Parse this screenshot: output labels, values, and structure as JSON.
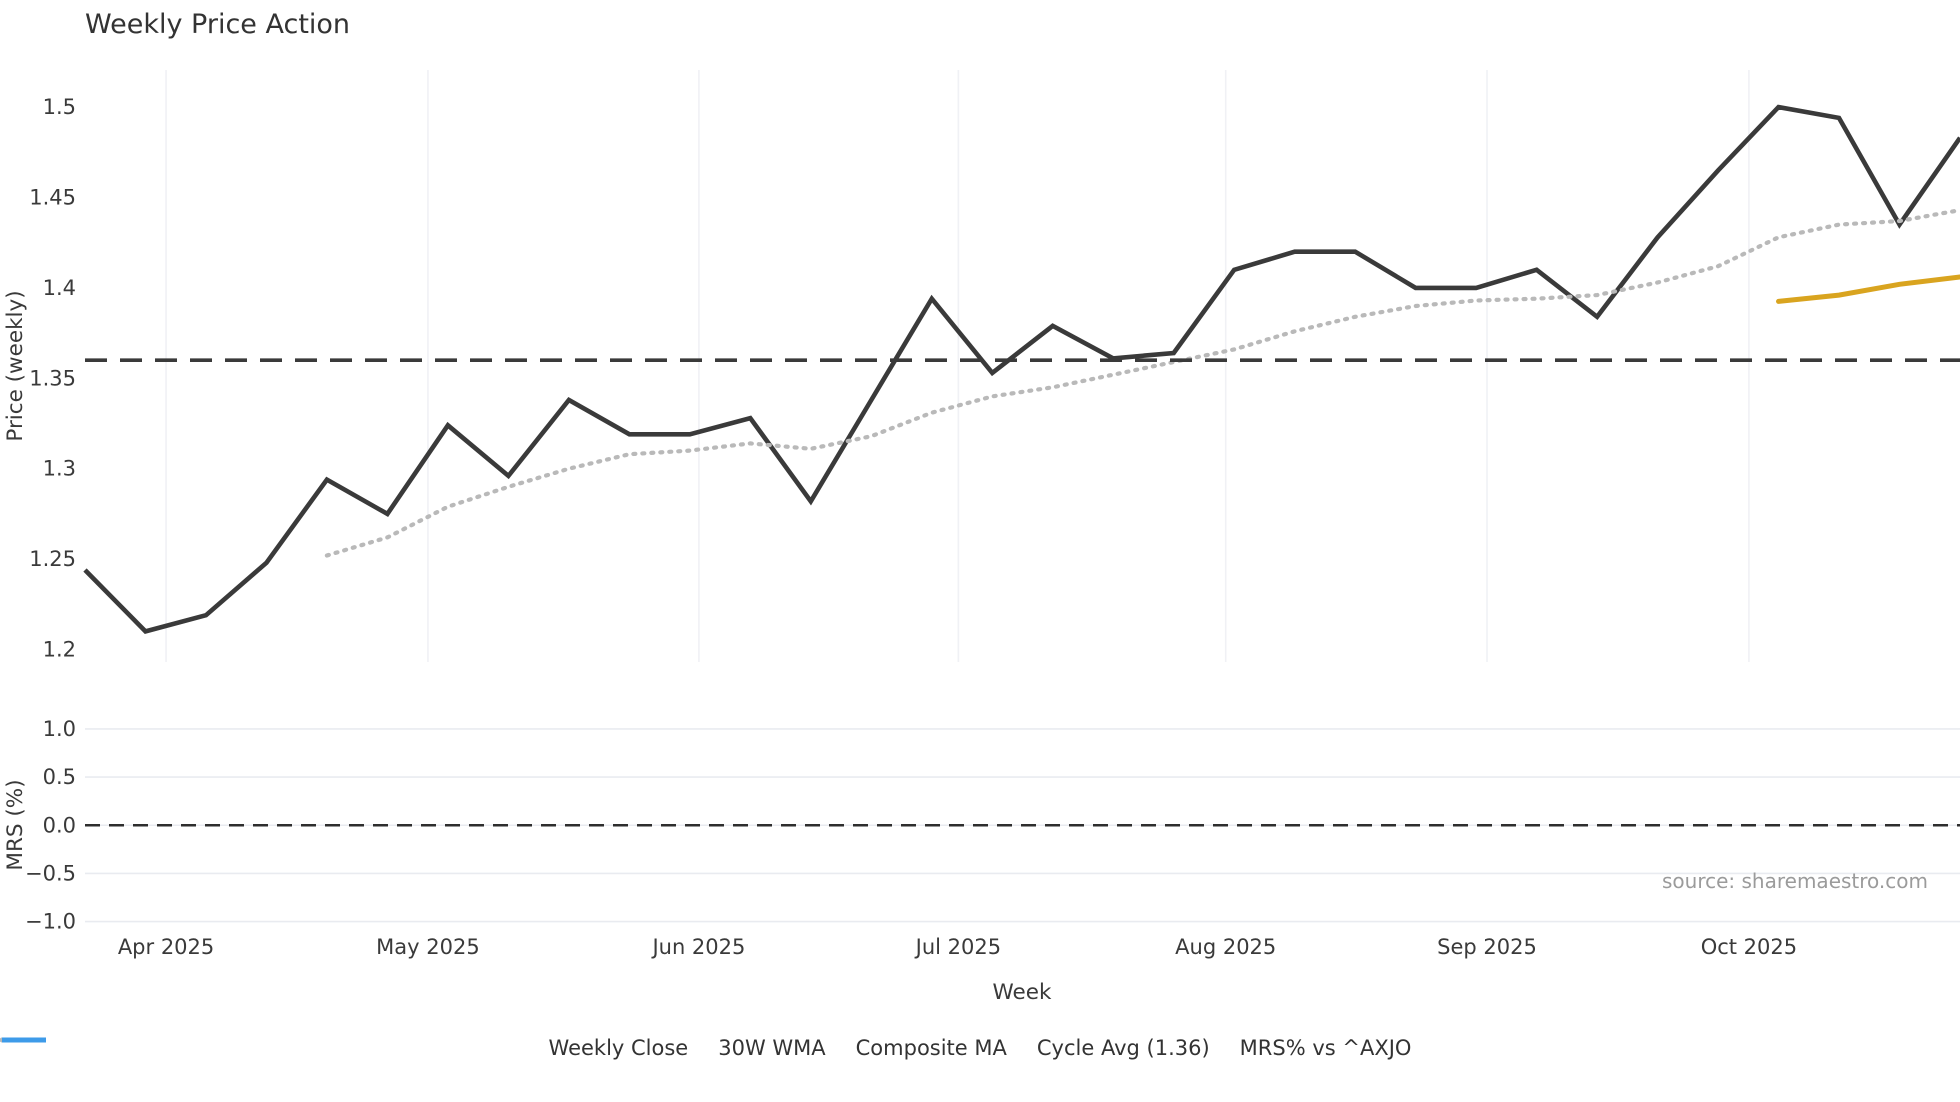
{
  "title": "Weekly Price Action",
  "xlabel": "Week",
  "source_note": "source: sharemaestro.com",
  "price_axis_label": "Price (weekly)",
  "mrs_axis_label": "MRS (%)",
  "legend": {
    "items": [
      {
        "label": "Weekly Close",
        "color": "#3a3a3a",
        "style": "solid"
      },
      {
        "label": "30W WMA",
        "color": "#d9a41f",
        "style": "solid"
      },
      {
        "label": "Composite MA",
        "color": "#b9b9b9",
        "style": "dotted"
      },
      {
        "label": "Cycle Avg (1.36)",
        "color": "#3a3a3a",
        "style": "dashed"
      },
      {
        "label": "MRS% vs ^AXJO",
        "color": "#3d9be9",
        "style": "solid"
      }
    ]
  },
  "chart_data": [
    {
      "panel": "price",
      "type": "line",
      "title": "Weekly Price Action",
      "ylabel": "Price (weekly)",
      "xlabel": "Week",
      "grid": "vertical-month-lines",
      "ylim": [
        1.1931,
        1.5205
      ],
      "xlim": [
        0,
        31
      ],
      "yticks": [
        {
          "v": 1.5,
          "label": "1.5"
        },
        {
          "v": 1.45,
          "label": "1.45"
        },
        {
          "v": 1.4,
          "label": "1.4"
        },
        {
          "v": 1.35,
          "label": "1.35"
        },
        {
          "v": 1.3,
          "label": "1.3"
        },
        {
          "v": 1.25,
          "label": "1.25"
        },
        {
          "v": 1.2,
          "label": "1.2"
        }
      ],
      "month_ticks": [
        {
          "label": "Apr 2025",
          "week": 1.34
        },
        {
          "label": "May 2025",
          "week": 5.67
        },
        {
          "label": "Jun 2025",
          "week": 10.15
        },
        {
          "label": "Jul 2025",
          "week": 14.44
        },
        {
          "label": "Aug 2025",
          "week": 18.86
        },
        {
          "label": "Sep 2025",
          "week": 23.18
        },
        {
          "label": "Oct 2025",
          "week": 27.51
        }
      ],
      "series": [
        {
          "name": "Weekly Close",
          "start_week": 0,
          "values": [
            1.244,
            1.21,
            1.219,
            1.248,
            1.294,
            1.275,
            1.324,
            1.296,
            1.338,
            1.319,
            1.319,
            1.328,
            1.282,
            1.338,
            1.394,
            1.353,
            1.379,
            1.361,
            1.364,
            1.41,
            1.42,
            1.42,
            1.4,
            1.4,
            1.41,
            1.384,
            1.428,
            1.465,
            1.5,
            1.494,
            1.435,
            1.483
          ]
        },
        {
          "name": "Composite MA",
          "start_week": 4,
          "values": [
            1.252,
            1.262,
            1.279,
            1.29,
            1.3,
            1.308,
            1.31,
            1.314,
            1.311,
            1.318,
            1.331,
            1.34,
            1.345,
            1.352,
            1.359,
            1.366,
            1.376,
            1.384,
            1.39,
            1.393,
            1.394,
            1.396,
            1.403,
            1.412,
            1.428,
            1.435,
            1.437,
            1.443
          ]
        },
        {
          "name": "30W WMA",
          "start_week": 28,
          "values": [
            1.3925,
            1.396,
            1.402,
            1.406
          ]
        },
        {
          "name": "Cycle Avg",
          "const": 1.36
        }
      ]
    },
    {
      "panel": "mrs",
      "type": "line",
      "ylabel": "MRS (%)",
      "ylim": [
        -1.036,
        1.197
      ],
      "yticks": [
        {
          "v": 1.0,
          "label": "1.0"
        },
        {
          "v": 0.5,
          "label": "0.5"
        },
        {
          "v": 0.0,
          "label": "0.0"
        },
        {
          "v": -0.5,
          "label": "−0.5"
        },
        {
          "v": -1.0,
          "label": "−1.0"
        }
      ],
      "zero_line": 0.0,
      "series": [
        {
          "name": "MRS% vs ^AXJO",
          "start_week": 0,
          "values": []
        }
      ]
    }
  ]
}
